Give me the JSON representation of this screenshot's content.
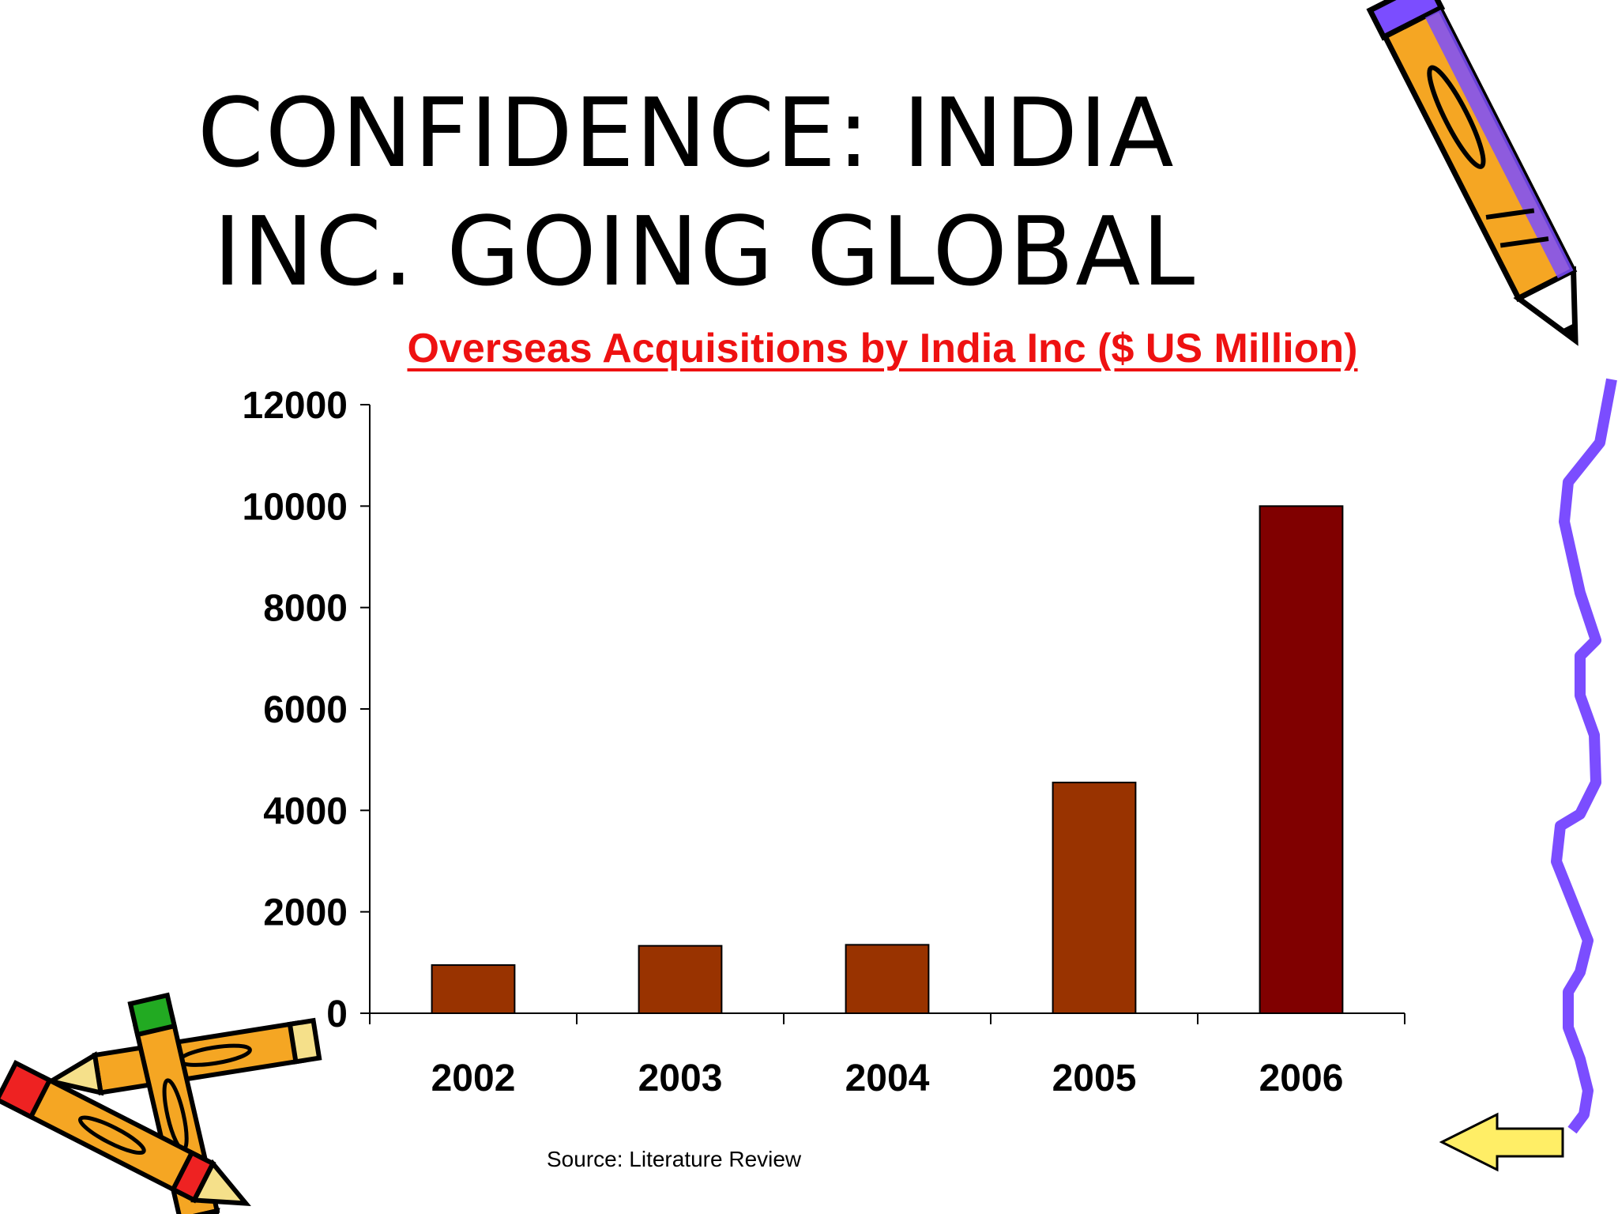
{
  "slide": {
    "title_line1": "CONFIDENCE: INDIA",
    "title_line2": "INC. GOING GLOBAL",
    "source": "Source:  Literature Review",
    "icons": [
      "pencil-icon",
      "crayons-icon",
      "back-arrow-icon",
      "squiggle-border"
    ]
  },
  "chart_data": {
    "type": "bar",
    "title": "Overseas Acquisitions by India Inc ($ US Million)",
    "xlabel": "",
    "ylabel": "",
    "categories": [
      "2002",
      "2003",
      "2004",
      "2005",
      "2006"
    ],
    "values": [
      950,
      1330,
      1350,
      4550,
      10000
    ],
    "ylim": [
      0,
      12000
    ],
    "yticks": [
      0,
      2000,
      4000,
      6000,
      8000,
      10000,
      12000
    ],
    "grid": false,
    "legend": "none",
    "bar_colors": [
      "#993300",
      "#993300",
      "#993300",
      "#993300",
      "#800000"
    ]
  }
}
